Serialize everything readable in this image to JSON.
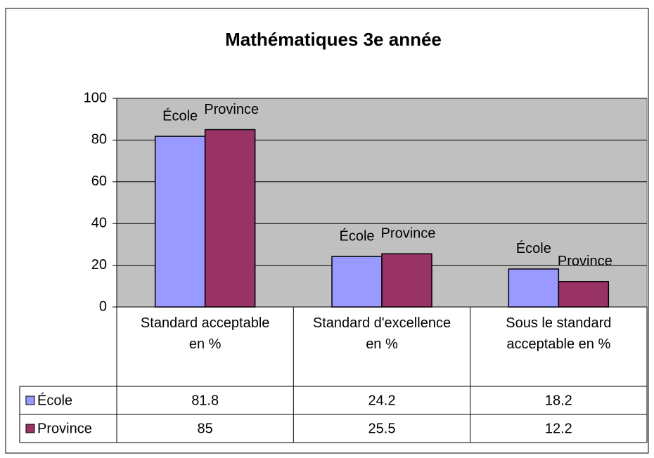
{
  "chart_data": {
    "type": "bar",
    "title": "Mathématiques 3e année",
    "categories": [
      "Standard acceptable en %",
      "Standard d'excellence en %",
      "Sous le standard acceptable en %"
    ],
    "series": [
      {
        "name": "École",
        "color": "#9999ff",
        "values": [
          81.8,
          24.2,
          18.2
        ]
      },
      {
        "name": "Province",
        "color": "#993366",
        "values": [
          85,
          25.5,
          12.2
        ]
      }
    ],
    "ylim": [
      0,
      100
    ],
    "yticks": [
      0,
      20,
      40,
      60,
      80,
      100
    ],
    "grid": true,
    "data_table": true
  }
}
